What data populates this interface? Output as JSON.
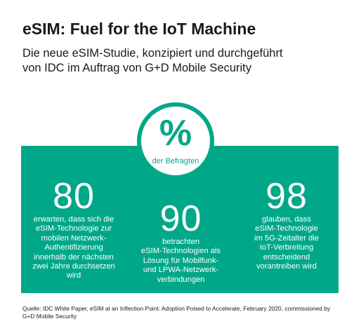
{
  "header": {
    "title": "eSIM: Fuel for the IoT Machine",
    "subtitle_line1": "Die neue eSIM-Studie, konzipiert und durchgeführt",
    "subtitle_line2": "von IDC im Auftrag von G+D Mobile Security"
  },
  "badge": {
    "symbol": "%",
    "label": "der Befragten"
  },
  "stats": {
    "left": {
      "number": "80",
      "lines": [
        "erwarten, dass sich die",
        "eSIM-Technologie zur",
        "mobilen Netzwerk-",
        "Authentifizierung",
        "innerhalb der nächsten",
        "zwei Jahre durchsetzen",
        "wird"
      ]
    },
    "middle": {
      "number": "90",
      "lines": [
        "betrachten",
        "eSIM-Technologien als",
        "Lösung für Mobilfunk-",
        "und LPWA-Netzwerk-",
        "verbindungen"
      ]
    },
    "right": {
      "number": "98",
      "lines": [
        "glauben, dass",
        "eSIM-Technologie",
        "im 5G-Zeitalter die",
        "IoT-Verbreitung",
        "entscheidend",
        "vorantreiben wird"
      ]
    }
  },
  "source": {
    "line1": "Quelle: IDC White Paper, eSIM at an Inflection Point: Adoption Poised to Accelerate, February 2020, commissioned by",
    "line2": "G+D Mobile Security"
  },
  "colors": {
    "accent": "#00a889",
    "text": "#1a1a1a",
    "background": "#ffffff"
  }
}
